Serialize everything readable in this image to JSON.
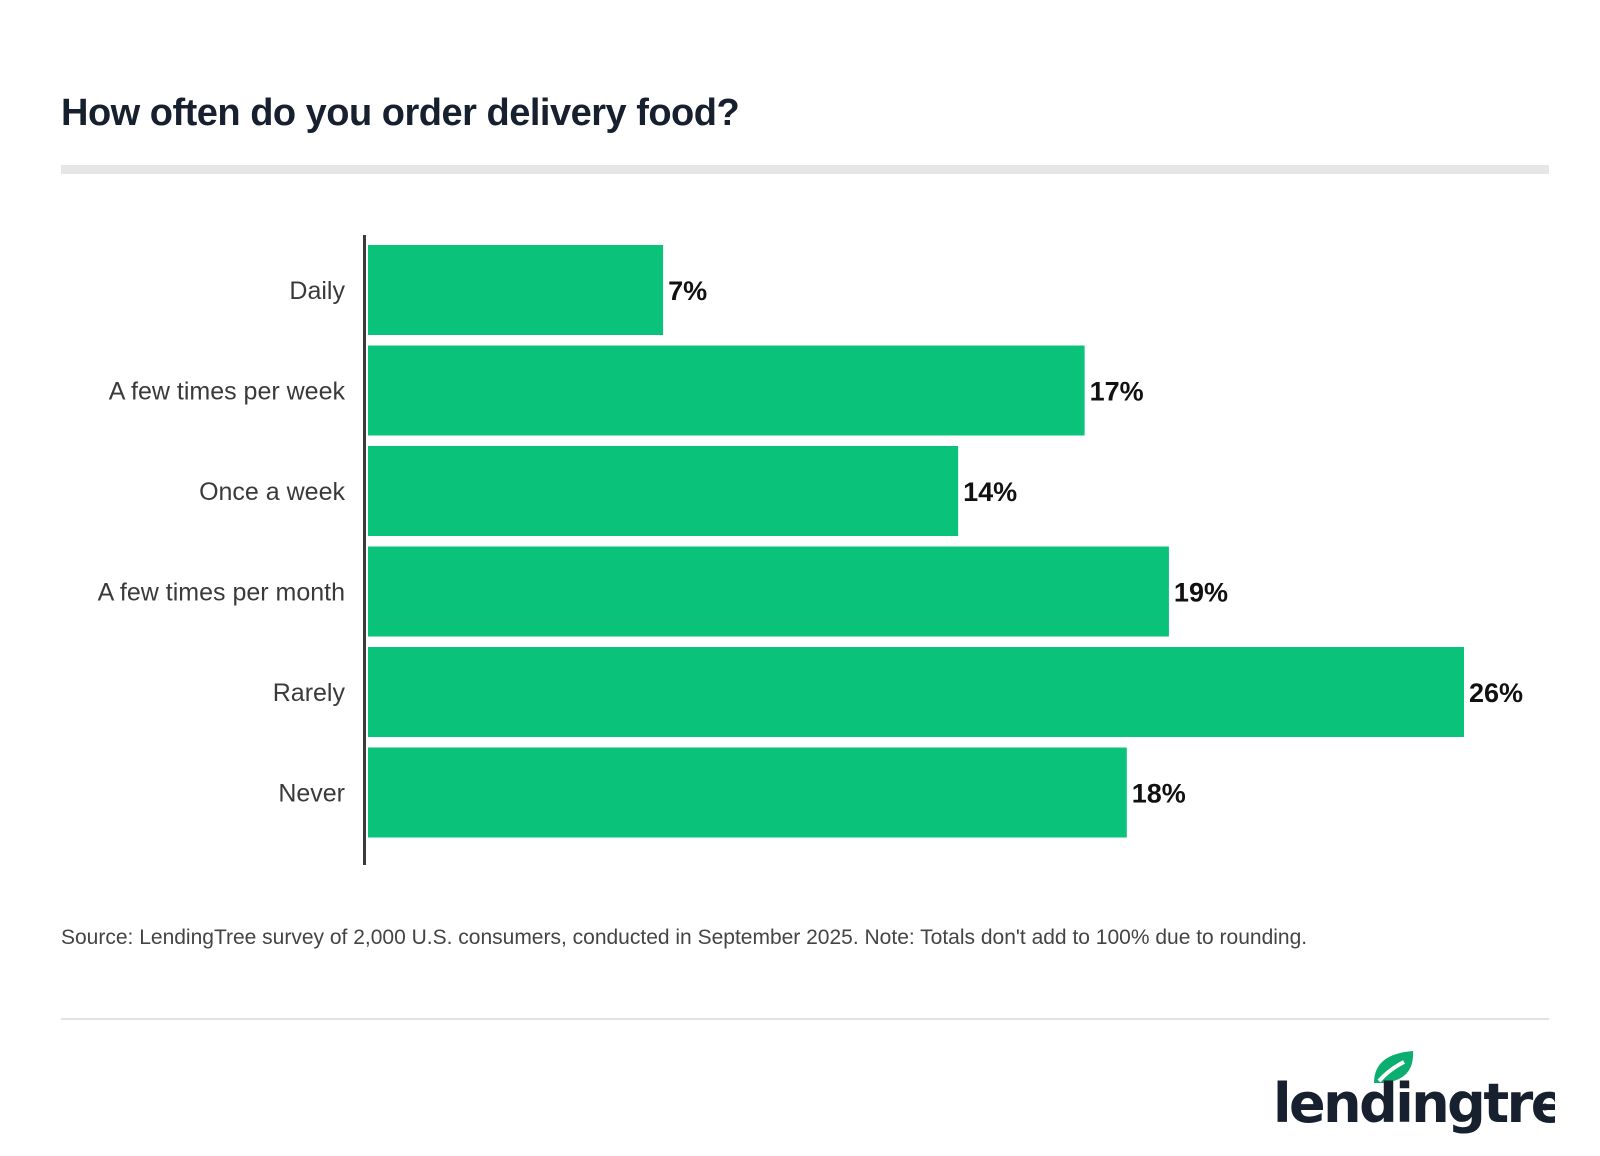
{
  "chart_data": {
    "type": "bar",
    "orientation": "horizontal",
    "title": "How often do you order delivery food?",
    "categories": [
      "Daily",
      "A few times per week",
      "Once a week",
      "A few times per month",
      "Rarely",
      "Never"
    ],
    "values": [
      7,
      17,
      14,
      19,
      26,
      18
    ],
    "value_labels": [
      "7%",
      "17%",
      "14%",
      "19%",
      "26%",
      "18%"
    ],
    "unit": "%",
    "xlim": [
      0,
      26
    ],
    "grid": false,
    "bar_color": "#0bc27a",
    "source": "Source: LendingTree survey of 2,000 U.S. consumers, conducted in September 2025. Note: Totals don't add to 100% due to rounding."
  },
  "brand": {
    "logo_text": "lendingtree",
    "logo_color": "#16202e",
    "leaf_color": "#0bae6f"
  }
}
